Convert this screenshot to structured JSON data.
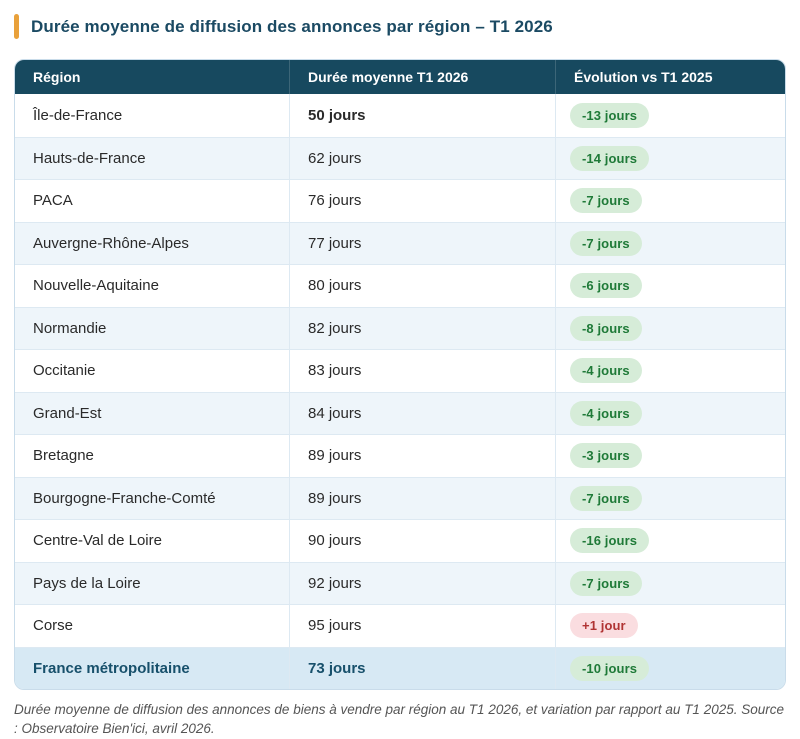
{
  "page": {
    "title": "Durée moyenne de diffusion des annonces par région – T1 2026",
    "caption": "Durée moyenne de diffusion des annonces de biens à vendre par région au T1 2026, et variation par rapport au T1 2025. Source : Observatoire Bien'ici, avril 2026."
  },
  "colors": {
    "accent_bar": "#e9a13b",
    "header_bg": "#17495f",
    "title_text": "#1b4a63",
    "row_alt_bg": "#eef5fa",
    "total_row_bg": "#d7e9f4",
    "total_text": "#17506b",
    "badge_green_bg": "#d6ecd8",
    "badge_green_text": "#1f7a38",
    "badge_red_bg": "#fadde0",
    "badge_red_text": "#b03434"
  },
  "table": {
    "columns": [
      "Région",
      "Durée moyenne T1 2026",
      "Évolution vs T1 2025"
    ],
    "rows": [
      {
        "region": "Île-de-France",
        "duration": "50 jours",
        "evolution": "-13 jours",
        "trend": "down",
        "duration_bold": true
      },
      {
        "region": "Hauts-de-France",
        "duration": "62 jours",
        "evolution": "-14 jours",
        "trend": "down"
      },
      {
        "region": "PACA",
        "duration": "76 jours",
        "evolution": "-7 jours",
        "trend": "down"
      },
      {
        "region": "Auvergne-Rhône-Alpes",
        "duration": "77 jours",
        "evolution": "-7 jours",
        "trend": "down"
      },
      {
        "region": "Nouvelle-Aquitaine",
        "duration": "80 jours",
        "evolution": "-6 jours",
        "trend": "down"
      },
      {
        "region": "Normandie",
        "duration": "82 jours",
        "evolution": "-8 jours",
        "trend": "down"
      },
      {
        "region": "Occitanie",
        "duration": "83 jours",
        "evolution": "-4 jours",
        "trend": "down"
      },
      {
        "region": "Grand-Est",
        "duration": "84 jours",
        "evolution": "-4 jours",
        "trend": "down"
      },
      {
        "region": "Bretagne",
        "duration": "89 jours",
        "evolution": "-3 jours",
        "trend": "down"
      },
      {
        "region": "Bourgogne-Franche-Comté",
        "duration": "89 jours",
        "evolution": "-7 jours",
        "trend": "down"
      },
      {
        "region": "Centre-Val de Loire",
        "duration": "90 jours",
        "evolution": "-16 jours",
        "trend": "down"
      },
      {
        "region": "Pays de la Loire",
        "duration": "92 jours",
        "evolution": "-7 jours",
        "trend": "down"
      },
      {
        "region": "Corse",
        "duration": "95 jours",
        "evolution": "+1 jour",
        "trend": "up"
      },
      {
        "region": "France métropolitaine",
        "duration": "73 jours",
        "evolution": "-10 jours",
        "trend": "down",
        "is_total": true
      }
    ]
  },
  "chart_data": {
    "type": "table",
    "title": "Durée moyenne de diffusion des annonces par région – T1 2026",
    "columns": [
      "Région",
      "Durée moyenne T1 2026 (jours)",
      "Évolution vs T1 2025 (jours)"
    ],
    "rows": [
      [
        "Île-de-France",
        50,
        -13
      ],
      [
        "Hauts-de-France",
        62,
        -14
      ],
      [
        "PACA",
        76,
        -7
      ],
      [
        "Auvergne-Rhône-Alpes",
        77,
        -7
      ],
      [
        "Nouvelle-Aquitaine",
        80,
        -6
      ],
      [
        "Normandie",
        82,
        -8
      ],
      [
        "Occitanie",
        83,
        -4
      ],
      [
        "Grand-Est",
        84,
        -4
      ],
      [
        "Bretagne",
        89,
        -3
      ],
      [
        "Bourgogne-Franche-Comté",
        89,
        -7
      ],
      [
        "Centre-Val de Loire",
        90,
        -16
      ],
      [
        "Pays de la Loire",
        92,
        -7
      ],
      [
        "Corse",
        95,
        1
      ],
      [
        "France métropolitaine",
        73,
        -10
      ]
    ],
    "annotations": "Durée moyenne de diffusion des annonces de biens à vendre par région au T1 2026, et variation par rapport au T1 2025. Source : Observatoire Bien'ici, avril 2026."
  }
}
